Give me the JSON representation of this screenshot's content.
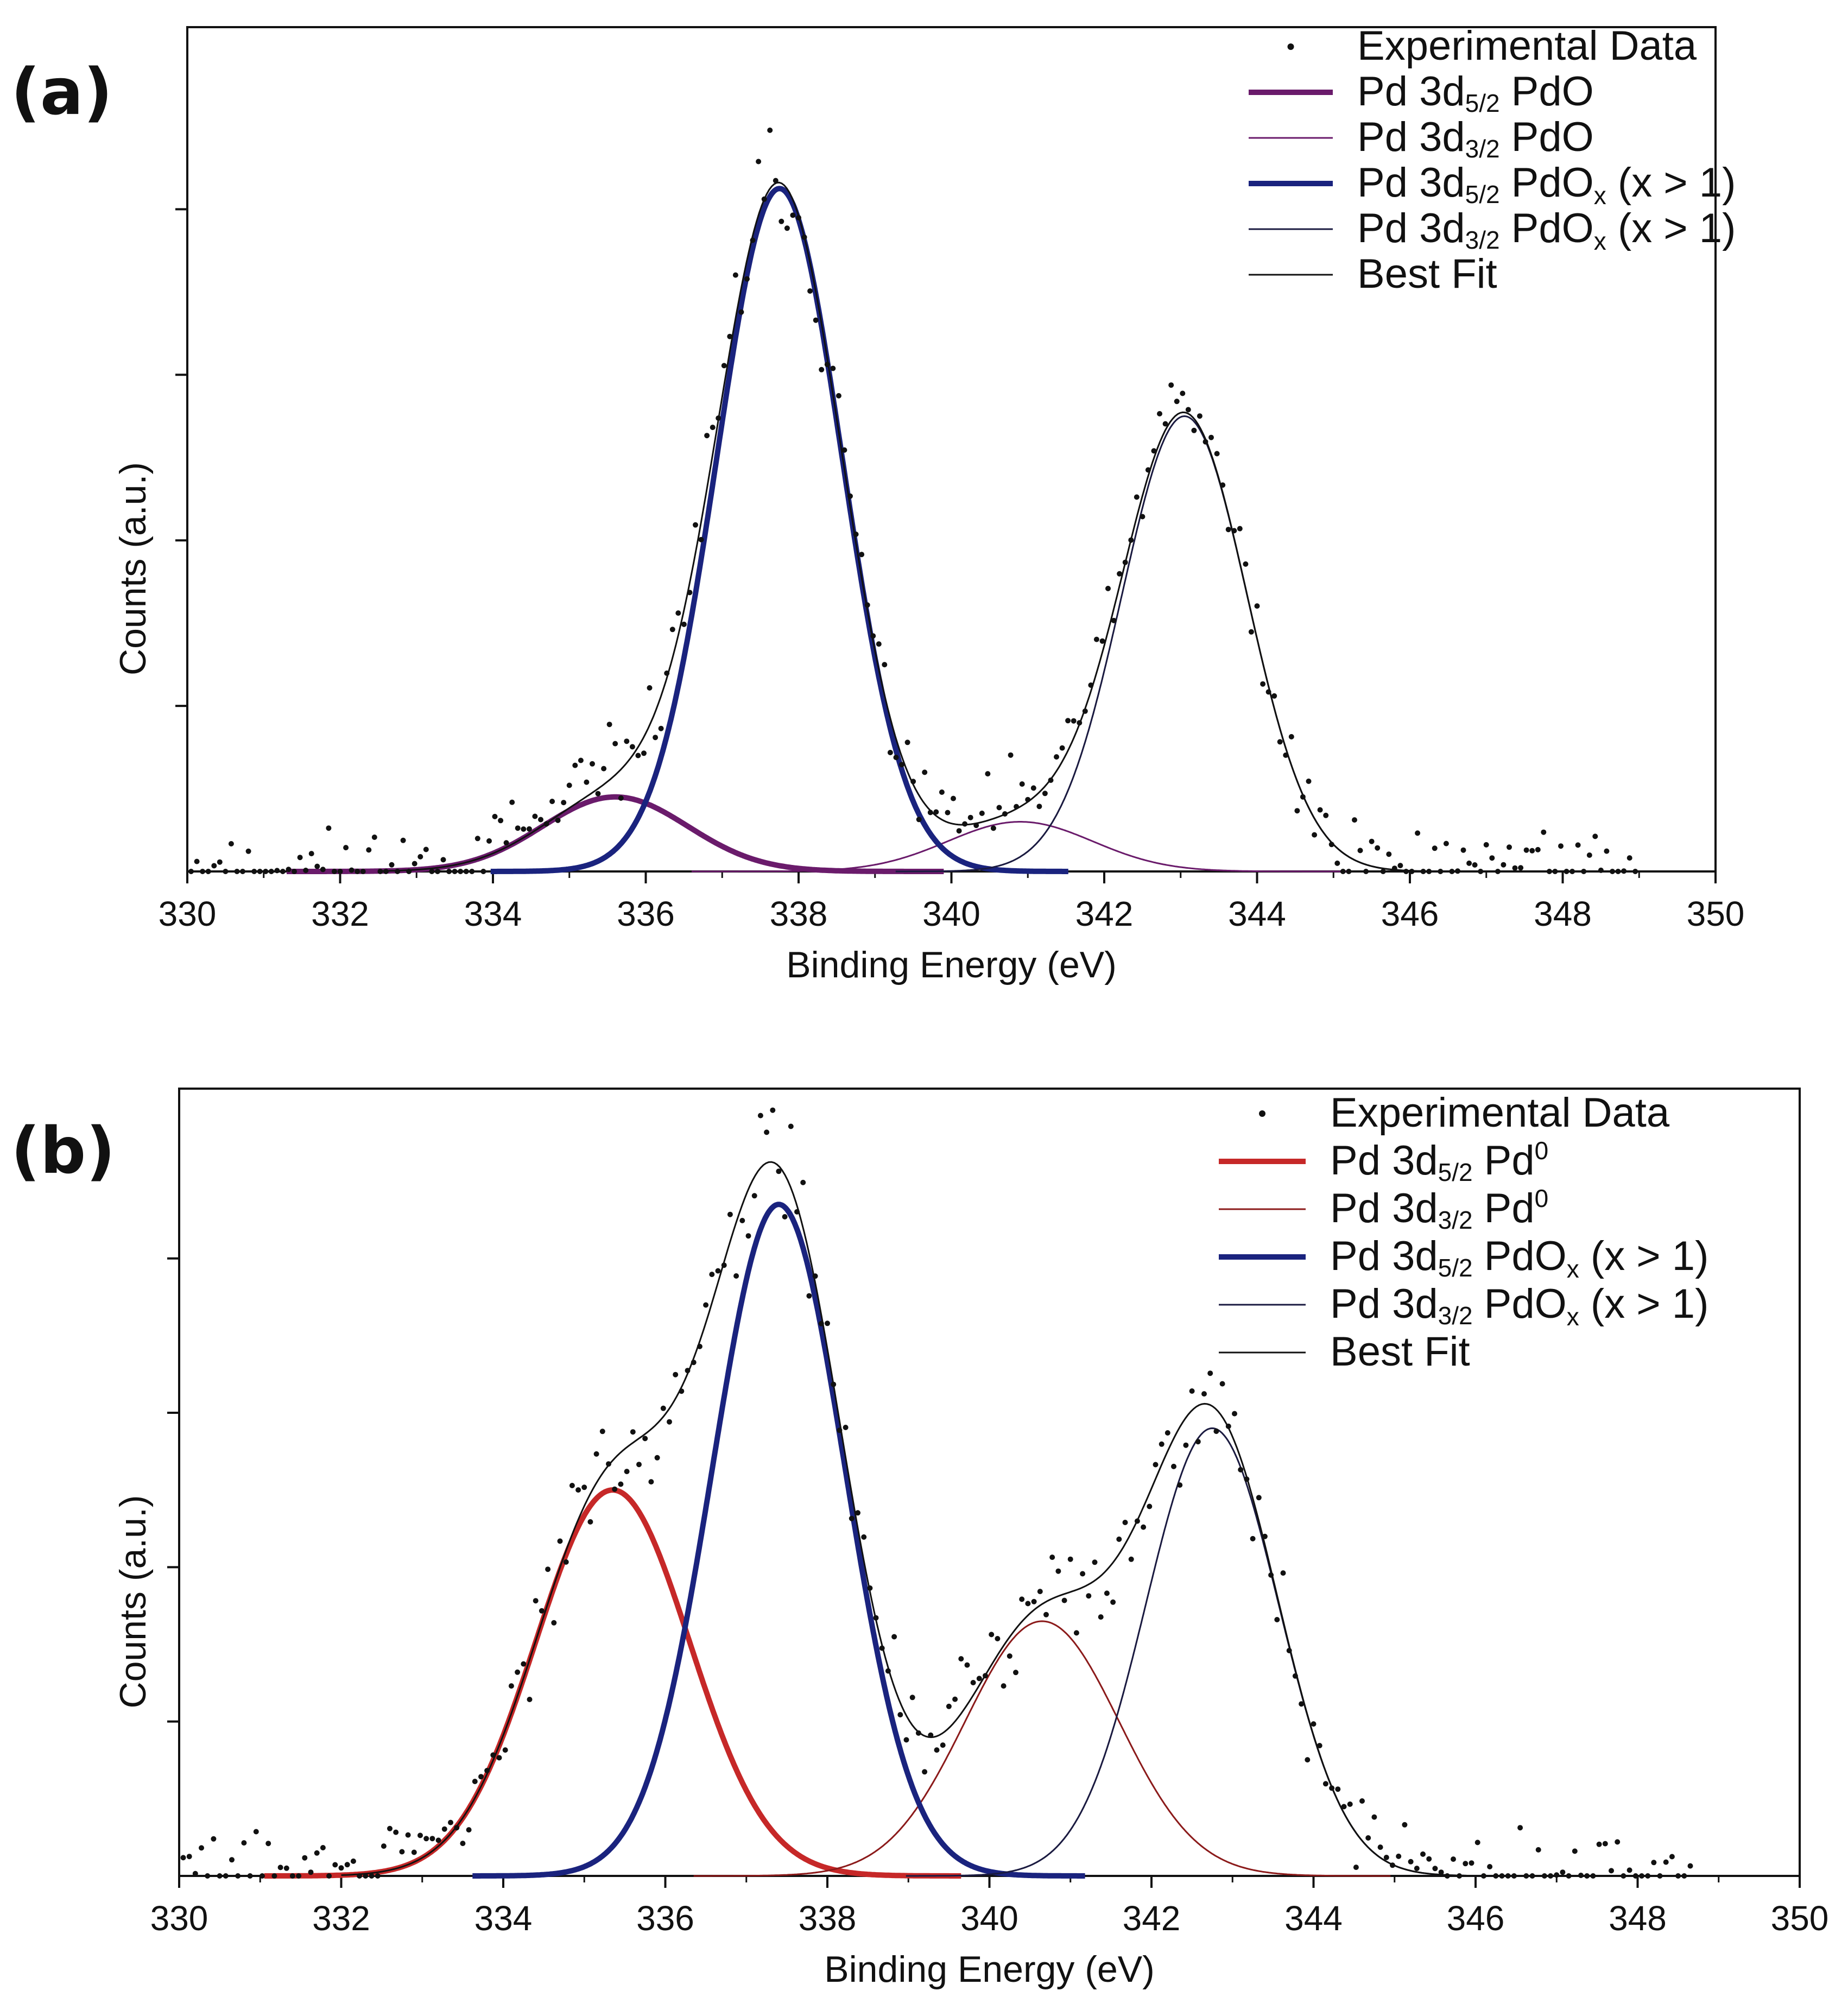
{
  "chart_data": [
    {
      "panel_label": "(a)",
      "type": "line",
      "xlabel": "Binding Energy (eV)",
      "ylabel": "Counts (a.u.)",
      "xlim": [
        330,
        350
      ],
      "ylim": [
        0,
        1.02
      ],
      "xticks": [
        "330",
        "332",
        "334",
        "336",
        "338",
        "340",
        "342",
        "344",
        "346",
        "348",
        "350"
      ],
      "yticks": [
        0.2,
        0.4,
        0.6,
        0.8
      ],
      "fit_range": [
        332.5,
        349
      ],
      "legend": {
        "placement": "top-right",
        "entries": [
          {
            "marker": "dot",
            "label": "Experimental Data",
            "color": "#111111"
          },
          {
            "marker": "line",
            "base": "Pd 3d",
            "sub": "5/2",
            "rest": " Pd",
            "tail": "O",
            "tail_sub": "",
            "suffix": "",
            "sup": "",
            "color": "#6a1b6b",
            "width": 10
          },
          {
            "marker": "line",
            "base": "Pd 3d",
            "sub": "3/2",
            "rest": " Pd",
            "tail": "O",
            "tail_sub": "",
            "suffix": "",
            "sup": "",
            "color": "#6a1b6b",
            "width": 3
          },
          {
            "marker": "line",
            "base": "Pd 3d",
            "sub": "5/2",
            "rest": " Pd",
            "tail": "O",
            "tail_sub": "x",
            "suffix": " (x > 1)",
            "sup": "",
            "color": "#1a237e",
            "width": 10
          },
          {
            "marker": "line",
            "base": "Pd 3d",
            "sub": "3/2",
            "rest": " Pd",
            "tail": "O",
            "tail_sub": "x",
            "suffix": " (x > 1)",
            "sup": "",
            "color": "#1a1a40",
            "width": 3
          },
          {
            "marker": "line",
            "label": "Best Fit",
            "color": "#111111",
            "width": 3
          }
        ]
      },
      "series": [
        {
          "name": "Pd 3d5/2 PdO",
          "peak": {
            "center": 335.6,
            "sigma": 0.95,
            "height": 0.09
          },
          "color": "#6a1b6b",
          "width": 10
        },
        {
          "name": "Pd 3d3/2 PdO",
          "peak": {
            "center": 340.9,
            "sigma": 0.95,
            "height": 0.06
          },
          "color": "#6a1b6b",
          "width": 3
        },
        {
          "name": "Pd 3d5/2 PdOx (x > 1)",
          "peak": {
            "center": 337.75,
            "sigma": 0.82,
            "height": 0.825
          },
          "color": "#1a237e",
          "width": 10
        },
        {
          "name": "Pd 3d3/2 PdOx (x > 1)",
          "peak": {
            "center": 343.05,
            "sigma": 0.82,
            "height": 0.55
          },
          "color": "#1a1a40",
          "width": 3
        }
      ],
      "experimental_data_noise": 0.03
    },
    {
      "panel_label": "(b)",
      "type": "line",
      "xlabel": "Binding Energy (eV)",
      "ylabel": "Counts (a.u.)",
      "xlim": [
        330,
        350
      ],
      "ylim": [
        0,
        1.02
      ],
      "xticks": [
        "330",
        "332",
        "334",
        "336",
        "338",
        "340",
        "342",
        "344",
        "346",
        "348",
        "350"
      ],
      "yticks": [
        0.2,
        0.4,
        0.6,
        0.8
      ],
      "fit_range": [
        332,
        348.7
      ],
      "legend": {
        "placement": "top-right",
        "entries": [
          {
            "marker": "dot",
            "label": "Experimental Data",
            "color": "#111111"
          },
          {
            "marker": "line",
            "base": "Pd 3d",
            "sub": "5/2",
            "rest": " Pd",
            "tail": "",
            "tail_sub": "",
            "suffix": "",
            "sup": "0",
            "color": "#c62828",
            "width": 10
          },
          {
            "marker": "line",
            "base": "Pd 3d",
            "sub": "3/2",
            "rest": " Pd",
            "tail": "",
            "tail_sub": "",
            "suffix": "",
            "sup": "0",
            "color": "#8b1a1a",
            "width": 3
          },
          {
            "marker": "line",
            "base": "Pd 3d",
            "sub": "5/2",
            "rest": " Pd",
            "tail": "O",
            "tail_sub": "x",
            "suffix": " (x > 1)",
            "sup": "",
            "color": "#1a237e",
            "width": 10
          },
          {
            "marker": "line",
            "base": "Pd 3d",
            "sub": "3/2",
            "rest": " Pd",
            "tail": "O",
            "tail_sub": "x",
            "suffix": " (x > 1)",
            "sup": "",
            "color": "#1a1a40",
            "width": 3
          },
          {
            "marker": "line",
            "label": "Best Fit",
            "color": "#111111",
            "width": 3
          }
        ]
      },
      "series": [
        {
          "name": "Pd 3d5/2 Pd0",
          "peak": {
            "center": 335.35,
            "sigma": 0.95,
            "height": 0.5
          },
          "color": "#c62828",
          "width": 10
        },
        {
          "name": "Pd 3d3/2 Pd0",
          "peak": {
            "center": 340.65,
            "sigma": 0.95,
            "height": 0.33
          },
          "color": "#8b1a1a",
          "width": 3
        },
        {
          "name": "Pd 3d5/2 PdOx (x > 1)",
          "peak": {
            "center": 337.4,
            "sigma": 0.82,
            "height": 0.87
          },
          "color": "#1a237e",
          "width": 10
        },
        {
          "name": "Pd 3d3/2 PdOx (x > 1)",
          "peak": {
            "center": 342.75,
            "sigma": 0.82,
            "height": 0.58
          },
          "color": "#1a1a40",
          "width": 3
        }
      ],
      "experimental_data_noise": 0.035
    }
  ]
}
